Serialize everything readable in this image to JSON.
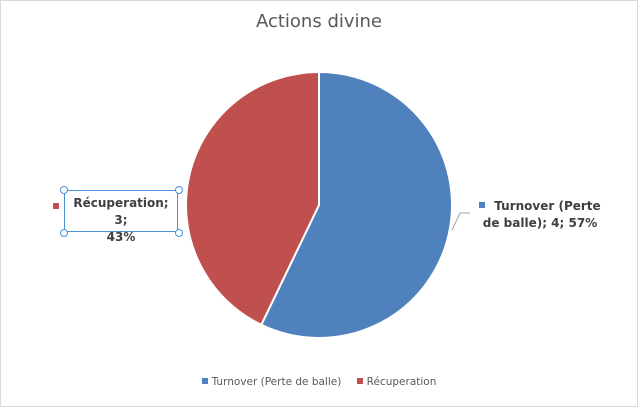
{
  "chart_data": {
    "type": "pie",
    "title": "Actions divine",
    "slices": [
      {
        "name": "Turnover (Perte de balle)",
        "value": 4,
        "percent": "57%",
        "color": "#4f81bd",
        "label_lines": [
          "Turnover (Perte",
          "de balle); 4; 57%"
        ]
      },
      {
        "name": "Récuperation",
        "value": 3,
        "percent": "43%",
        "color": "#c0504d",
        "label_lines": [
          "Récuperation; 3;",
          "43%"
        ]
      }
    ],
    "legend_position": "bottom",
    "data_labels": "outside",
    "selected_label": "Récuperation"
  }
}
